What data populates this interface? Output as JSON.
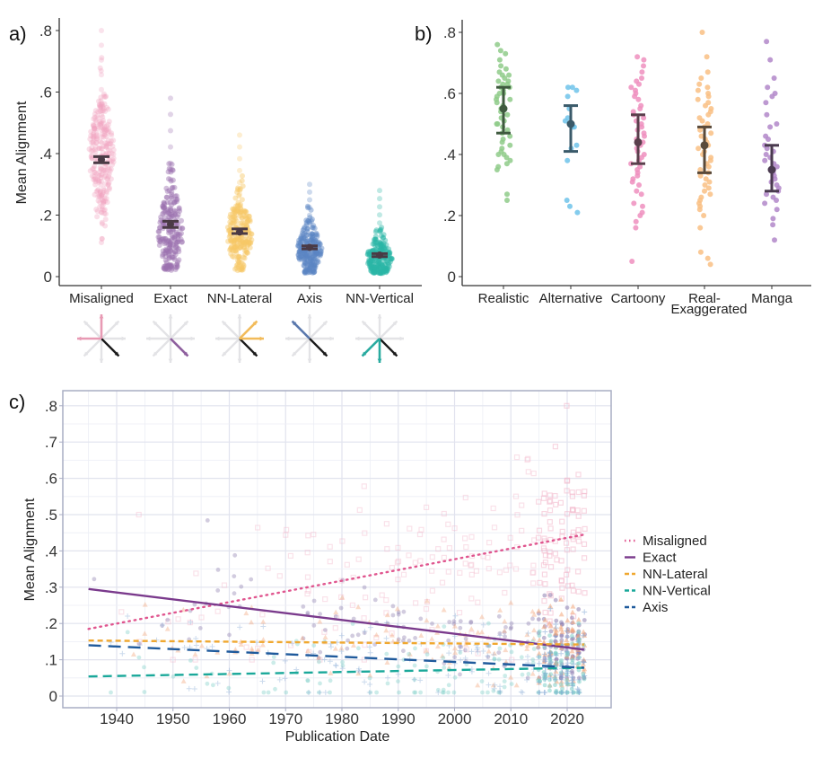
{
  "chart_data": [
    {
      "id": "a",
      "panel_label": "a)",
      "type": "scatter",
      "subtype": "beeswarm-with-error-bars",
      "ylabel": "Mean Alignment",
      "xlabel": "",
      "ylim": [
        0,
        0.8
      ],
      "yticks": [
        0,
        0.2,
        0.4,
        0.6,
        0.8
      ],
      "ytick_labels": [
        "0",
        ".2",
        ".4",
        ".6",
        ".8"
      ],
      "categories": [
        "Misaligned",
        "Exact",
        "NN-Lateral",
        "Axis",
        "NN-Vertical"
      ],
      "colors": [
        "#f0a3bf",
        "#9b72b0",
        "#f7c766",
        "#5b86c4",
        "#2bb5a7"
      ],
      "series": [
        {
          "name": "Misaligned",
          "mean": 0.38,
          "ci_low": 0.37,
          "ci_high": 0.39,
          "min": 0.07,
          "max": 0.8,
          "spread_center": 0.4
        },
        {
          "name": "Exact",
          "mean": 0.17,
          "ci_low": 0.16,
          "ci_high": 0.18,
          "min": 0.02,
          "max": 0.58,
          "spread_center": 0.14
        },
        {
          "name": "NN-Lateral",
          "mean": 0.145,
          "ci_low": 0.14,
          "ci_high": 0.155,
          "min": 0.02,
          "max": 0.46,
          "spread_center": 0.14
        },
        {
          "name": "Axis",
          "mean": 0.095,
          "ci_low": 0.09,
          "ci_high": 0.1,
          "min": 0.01,
          "max": 0.3,
          "spread_center": 0.09
        },
        {
          "name": "NN-Vertical",
          "mean": 0.07,
          "ci_low": 0.065,
          "ci_high": 0.075,
          "min": 0.01,
          "max": 0.28,
          "spread_center": 0.06
        }
      ],
      "icons": [
        {
          "name": "misaligned-arrows-icon",
          "highlight": [
            "N",
            "W"
          ],
          "color": "#e89ab4"
        },
        {
          "name": "exact-arrows-icon",
          "highlight": [
            "SE"
          ],
          "color": "#8e5f9e"
        },
        {
          "name": "nn-lateral-arrows-icon",
          "highlight": [
            "NE",
            "E"
          ],
          "color": "#f2bb5a"
        },
        {
          "name": "axis-arrows-icon",
          "highlight": [
            "NW"
          ],
          "color": "#5a78ad"
        },
        {
          "name": "nn-vertical-arrows-icon",
          "highlight": [
            "SW",
            "S"
          ],
          "color": "#2aaba0"
        }
      ]
    },
    {
      "id": "b",
      "panel_label": "b)",
      "type": "scatter",
      "subtype": "strip-with-error-bars",
      "ylabel": "",
      "xlabel": "",
      "ylim": [
        0,
        0.8
      ],
      "yticks": [
        0,
        0.2,
        0.4,
        0.6,
        0.8
      ],
      "ytick_labels": [
        "0",
        ".2",
        ".4",
        ".6",
        ".8"
      ],
      "categories": [
        "Realistic",
        "Alternative",
        "Cartoony",
        "Real-\nExaggerated",
        "Manga"
      ],
      "colors": [
        "#8fcb8a",
        "#6ec3ea",
        "#ef8fbe",
        "#f9bf84",
        "#b287c9"
      ],
      "errorbar_colors": [
        "#3f5a3f",
        "#3a5a6a",
        "#5a3f4c",
        "#5a4a3a",
        "#4a3a4f"
      ],
      "series": [
        {
          "name": "Realistic",
          "mean": 0.55,
          "ci_low": 0.47,
          "ci_high": 0.62,
          "points": [
            0.76,
            0.74,
            0.73,
            0.71,
            0.69,
            0.68,
            0.67,
            0.66,
            0.66,
            0.65,
            0.64,
            0.64,
            0.63,
            0.63,
            0.62,
            0.62,
            0.61,
            0.6,
            0.6,
            0.59,
            0.58,
            0.58,
            0.57,
            0.56,
            0.55,
            0.55,
            0.54,
            0.53,
            0.52,
            0.51,
            0.5,
            0.5,
            0.49,
            0.48,
            0.47,
            0.46,
            0.45,
            0.44,
            0.43,
            0.42,
            0.41,
            0.4,
            0.4,
            0.39,
            0.38,
            0.37,
            0.36,
            0.35,
            0.27,
            0.25
          ]
        },
        {
          "name": "Alternative",
          "mean": 0.5,
          "ci_low": 0.41,
          "ci_high": 0.56,
          "points": [
            0.62,
            0.62,
            0.61,
            0.59,
            0.55,
            0.52,
            0.51,
            0.49,
            0.49,
            0.43,
            0.42,
            0.38,
            0.25,
            0.23,
            0.21
          ]
        },
        {
          "name": "Cartoony",
          "mean": 0.44,
          "ci_low": 0.37,
          "ci_high": 0.53,
          "points": [
            0.72,
            0.71,
            0.69,
            0.67,
            0.65,
            0.64,
            0.63,
            0.62,
            0.61,
            0.6,
            0.59,
            0.58,
            0.56,
            0.55,
            0.54,
            0.53,
            0.52,
            0.51,
            0.5,
            0.49,
            0.48,
            0.47,
            0.46,
            0.45,
            0.44,
            0.43,
            0.42,
            0.41,
            0.4,
            0.39,
            0.38,
            0.37,
            0.36,
            0.35,
            0.34,
            0.33,
            0.32,
            0.31,
            0.3,
            0.28,
            0.27,
            0.24,
            0.23,
            0.21,
            0.2,
            0.18,
            0.16,
            0.05
          ]
        },
        {
          "name": "Real-Exaggerated",
          "mean": 0.43,
          "ci_low": 0.34,
          "ci_high": 0.49,
          "points": [
            0.8,
            0.72,
            0.67,
            0.65,
            0.63,
            0.62,
            0.61,
            0.6,
            0.59,
            0.58,
            0.57,
            0.56,
            0.55,
            0.54,
            0.53,
            0.52,
            0.51,
            0.5,
            0.49,
            0.48,
            0.47,
            0.46,
            0.45,
            0.44,
            0.43,
            0.42,
            0.41,
            0.4,
            0.39,
            0.38,
            0.37,
            0.36,
            0.35,
            0.34,
            0.33,
            0.32,
            0.31,
            0.3,
            0.29,
            0.28,
            0.27,
            0.26,
            0.25,
            0.24,
            0.23,
            0.22,
            0.2,
            0.16,
            0.08,
            0.06,
            0.04
          ]
        },
        {
          "name": "Manga",
          "mean": 0.35,
          "ci_low": 0.28,
          "ci_high": 0.43,
          "points": [
            0.77,
            0.71,
            0.65,
            0.62,
            0.6,
            0.59,
            0.57,
            0.53,
            0.5,
            0.49,
            0.46,
            0.45,
            0.43,
            0.42,
            0.41,
            0.4,
            0.39,
            0.38,
            0.37,
            0.36,
            0.35,
            0.34,
            0.33,
            0.32,
            0.31,
            0.3,
            0.29,
            0.28,
            0.27,
            0.26,
            0.25,
            0.24,
            0.22,
            0.19,
            0.17,
            0.12
          ]
        }
      ]
    },
    {
      "id": "c",
      "panel_label": "c)",
      "type": "scatter",
      "subtype": "scatter-with-linear-trends",
      "ylabel": "Mean Alignment",
      "xlabel": "Publication Date",
      "xlim": [
        1931,
        2027
      ],
      "ylim": [
        -0.03,
        0.83
      ],
      "xticks": [
        1940,
        1950,
        1960,
        1970,
        1980,
        1990,
        2000,
        2010,
        2020
      ],
      "xtick_labels": [
        "1940",
        "1950",
        "1960",
        "1970",
        "1980",
        "1990",
        "2000",
        "2010",
        "2020"
      ],
      "yticks": [
        0,
        0.1,
        0.2,
        0.3,
        0.4,
        0.5,
        0.6,
        0.7,
        0.8
      ],
      "ytick_labels": [
        "0",
        ".1",
        ".2",
        ".3",
        ".4",
        ".5",
        ".6",
        ".7",
        ".8"
      ],
      "grid": true,
      "legend_position": "right",
      "series": [
        {
          "name": "Misaligned",
          "color": "#e0568f",
          "dash": "dotted",
          "trend": [
            [
              1935,
              0.185
            ],
            [
              2023,
              0.445
            ]
          ],
          "point_range": [
            0.1,
            0.8
          ]
        },
        {
          "name": "Exact",
          "color": "#7a3a8c",
          "dash": "solid",
          "trend": [
            [
              1935,
              0.295
            ],
            [
              2023,
              0.128
            ]
          ],
          "point_range": [
            0.05,
            0.58
          ]
        },
        {
          "name": "NN-Lateral",
          "color": "#f0a830",
          "dash": "dashed-short",
          "trend": [
            [
              1935,
              0.153
            ],
            [
              2023,
              0.142
            ]
          ],
          "point_range": [
            0.03,
            0.46
          ]
        },
        {
          "name": "NN-Vertical",
          "color": "#1aa89a",
          "dash": "dashed",
          "trend": [
            [
              1935,
              0.054
            ],
            [
              2023,
              0.078
            ]
          ],
          "point_range": [
            0.01,
            0.2
          ]
        },
        {
          "name": "Axis",
          "color": "#1f5a9c",
          "dash": "dashed-long",
          "trend": [
            [
              1935,
              0.14
            ],
            [
              2023,
              0.078
            ]
          ],
          "point_range": [
            0.01,
            0.3
          ]
        }
      ]
    }
  ]
}
